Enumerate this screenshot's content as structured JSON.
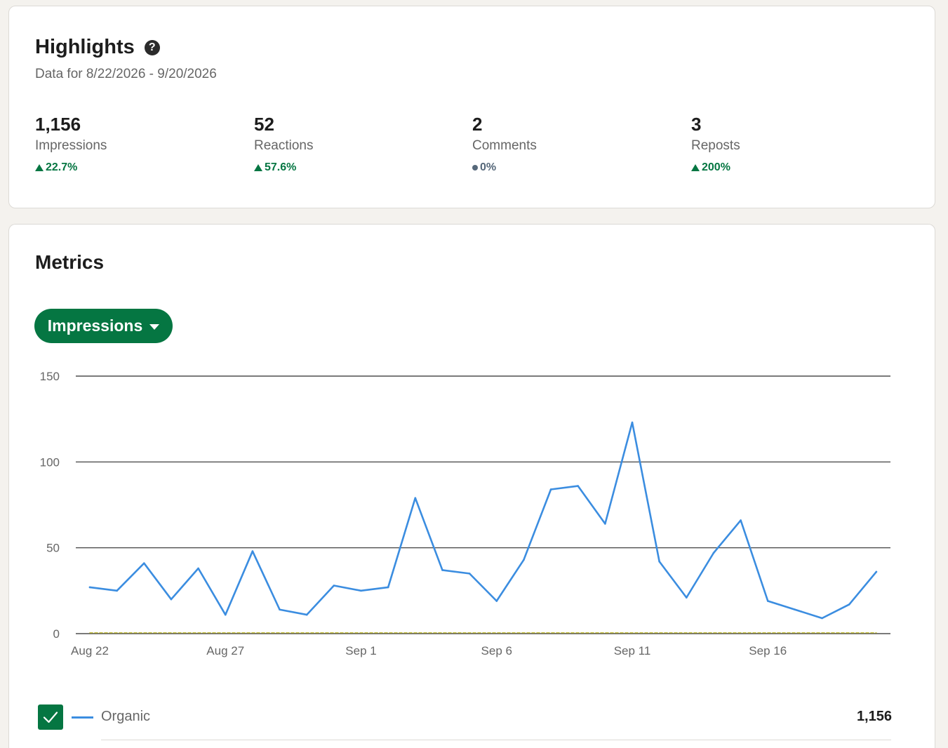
{
  "highlights": {
    "title": "Highlights",
    "help_icon": "question-circle-icon",
    "date_range": "Data for 8/22/2026 - 9/20/2026",
    "stats": [
      {
        "value": "1,156",
        "label": "Impressions",
        "change": "22.7%",
        "trend": "up"
      },
      {
        "value": "52",
        "label": "Reactions",
        "change": "57.6%",
        "trend": "up"
      },
      {
        "value": "2",
        "label": "Comments",
        "change": "0%",
        "trend": "flat"
      },
      {
        "value": "3",
        "label": "Reposts",
        "change": "200%",
        "trend": "up"
      }
    ]
  },
  "metrics": {
    "title": "Metrics",
    "dropdown_label": "Impressions",
    "legend": {
      "label": "Organic",
      "total": "1,156",
      "checked": true
    }
  },
  "colors": {
    "accent_green": "#057642",
    "series_blue": "#3b8de0",
    "baseline_olive": "#c8c24a",
    "neutral": "#56687a"
  },
  "chart_data": {
    "type": "line",
    "x": [
      "Aug 22",
      "Aug 23",
      "Aug 24",
      "Aug 25",
      "Aug 26",
      "Aug 27",
      "Aug 28",
      "Aug 29",
      "Aug 30",
      "Aug 31",
      "Sep 1",
      "Sep 2",
      "Sep 3",
      "Sep 4",
      "Sep 5",
      "Sep 6",
      "Sep 7",
      "Sep 8",
      "Sep 9",
      "Sep 10",
      "Sep 11",
      "Sep 12",
      "Sep 13",
      "Sep 14",
      "Sep 15",
      "Sep 16",
      "Sep 17",
      "Sep 18",
      "Sep 19",
      "Sep 20"
    ],
    "x_tick_labels": [
      "Aug 22",
      "Aug 27",
      "Sep 1",
      "Sep 6",
      "Sep 11",
      "Sep 16"
    ],
    "y_ticks": [
      0,
      50,
      100,
      150
    ],
    "ylim": [
      0,
      150
    ],
    "grid": true,
    "series": [
      {
        "name": "Organic",
        "color": "#3b8de0",
        "values": [
          27,
          25,
          41,
          20,
          38,
          11,
          48,
          14,
          11,
          28,
          25,
          27,
          79,
          37,
          35,
          19,
          43,
          84,
          86,
          64,
          123,
          42,
          21,
          47,
          66,
          19,
          14,
          9,
          17,
          36
        ]
      },
      {
        "name": "",
        "color": "#c8c24a",
        "dashed": true,
        "values": [
          0.5,
          0.5,
          0.5,
          0.5,
          0.5,
          0.5,
          0.5,
          0.5,
          0.5,
          0.5,
          0.5,
          0.5,
          0.5,
          0.5,
          0.5,
          0.5,
          0.5,
          0.5,
          0.5,
          0.5,
          0.5,
          0.5,
          0.5,
          0.5,
          0.5,
          0.5,
          0.5,
          0.5,
          0.5,
          0.5
        ]
      }
    ]
  }
}
